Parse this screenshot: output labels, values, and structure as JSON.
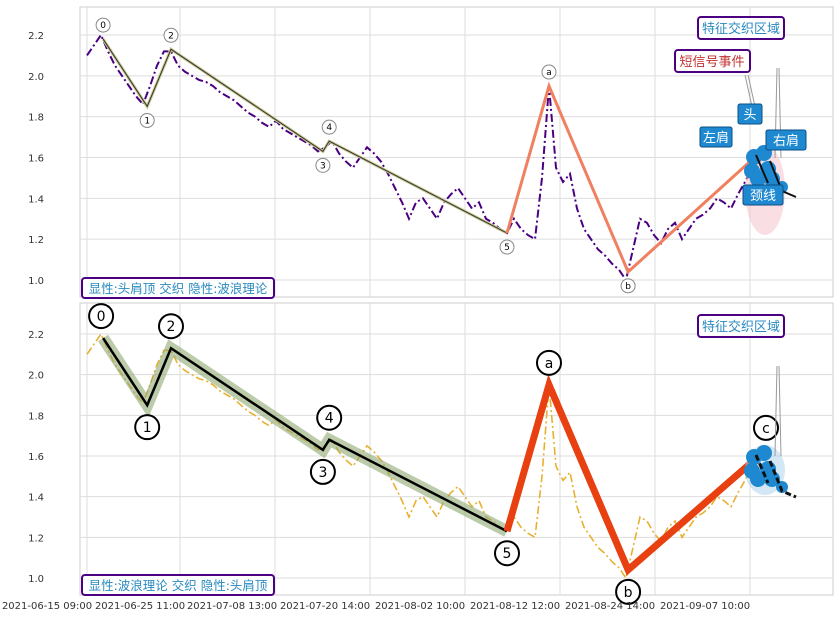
{
  "chart_data": {
    "type": "line",
    "x_tick_labels": [
      "2021-06-15 09:00",
      "2021-06-25 11:00",
      "2021-07-08 13:00",
      "2021-07-20 14:00",
      "2021-08-02 10:00",
      "2021-08-12 12:00",
      "2021-08-24 14:00",
      "2021-09-07 10:00"
    ],
    "y_ticks": [
      "1.0",
      "1.2",
      "1.4",
      "1.6",
      "1.8",
      "2.0",
      "2.2"
    ],
    "y_tick_values": [
      1.0,
      1.2,
      1.4,
      1.6,
      1.8,
      2.0,
      2.2
    ],
    "ylim": [
      0.93,
      2.34
    ],
    "grid": true,
    "price": [
      2.1,
      2.15,
      2.2,
      2.12,
      2.05,
      2.0,
      1.95,
      1.9,
      1.86,
      1.95,
      2.05,
      2.12,
      2.12,
      2.05,
      2.02,
      2.0,
      1.98,
      1.97,
      1.95,
      1.92,
      1.9,
      1.88,
      1.85,
      1.82,
      1.8,
      1.77,
      1.75,
      1.78,
      1.74,
      1.72,
      1.7,
      1.68,
      1.66,
      1.63,
      1.65,
      1.68,
      1.62,
      1.58,
      1.55,
      1.6,
      1.65,
      1.62,
      1.58,
      1.52,
      1.45,
      1.38,
      1.3,
      1.38,
      1.4,
      1.35,
      1.3,
      1.38,
      1.42,
      1.45,
      1.4,
      1.35,
      1.38,
      1.3,
      1.28,
      1.25,
      1.23,
      1.3,
      1.25,
      1.22,
      1.2,
      1.5,
      1.95,
      1.55,
      1.48,
      1.52,
      1.35,
      1.25,
      1.2,
      1.15,
      1.12,
      1.08,
      1.05,
      1.0,
      1.15,
      1.3,
      1.28,
      1.22,
      1.18,
      1.25,
      1.28,
      1.2,
      1.25,
      1.3,
      1.32,
      1.35,
      1.4,
      1.38,
      1.35,
      1.42,
      1.48,
      1.55,
      1.6
    ],
    "waves_impulse": [
      {
        "label": "0",
        "x": 2.3,
        "y": 2.18
      },
      {
        "label": "1",
        "x": 8.6,
        "y": 1.85
      },
      {
        "label": "2",
        "x": 12,
        "y": 2.13
      },
      {
        "label": "3",
        "x": 33.7,
        "y": 1.63
      },
      {
        "label": "4",
        "x": 34.6,
        "y": 1.68
      },
      {
        "label": "5",
        "x": 60,
        "y": 1.23
      }
    ],
    "waves_corrective": [
      {
        "label": "a",
        "x": 66,
        "y": 1.95
      },
      {
        "label": "b",
        "x": 77.3,
        "y": 1.04
      }
    ],
    "wave_c_bottom": {
      "label": "c",
      "x": 97,
      "y": 1.63
    },
    "top_corrective_end": {
      "x": 94.7,
      "y": 1.58
    },
    "panels": [
      {
        "name": "top",
        "caption": "显性:头肩顶 交织 隐性:波浪理论",
        "annotations": {
          "zone": "特征交织区域",
          "short_event": "短信号事件",
          "left_shoulder": "左肩",
          "head": "头",
          "right_shoulder": "右肩",
          "neckline": "颈线"
        }
      },
      {
        "name": "bottom",
        "caption": "显性:波浪理论 交织 隐性:头肩顶",
        "annotations": {
          "zone": "特征交织区域"
        }
      }
    ],
    "colors": {
      "price_top": "#4b0082",
      "price_bottom": "#e8b030",
      "corrective": "#f08060",
      "corrective_bottom": "#e84010",
      "impulse_band": "#8fa870",
      "hs_blue": "#1e88d0"
    }
  }
}
